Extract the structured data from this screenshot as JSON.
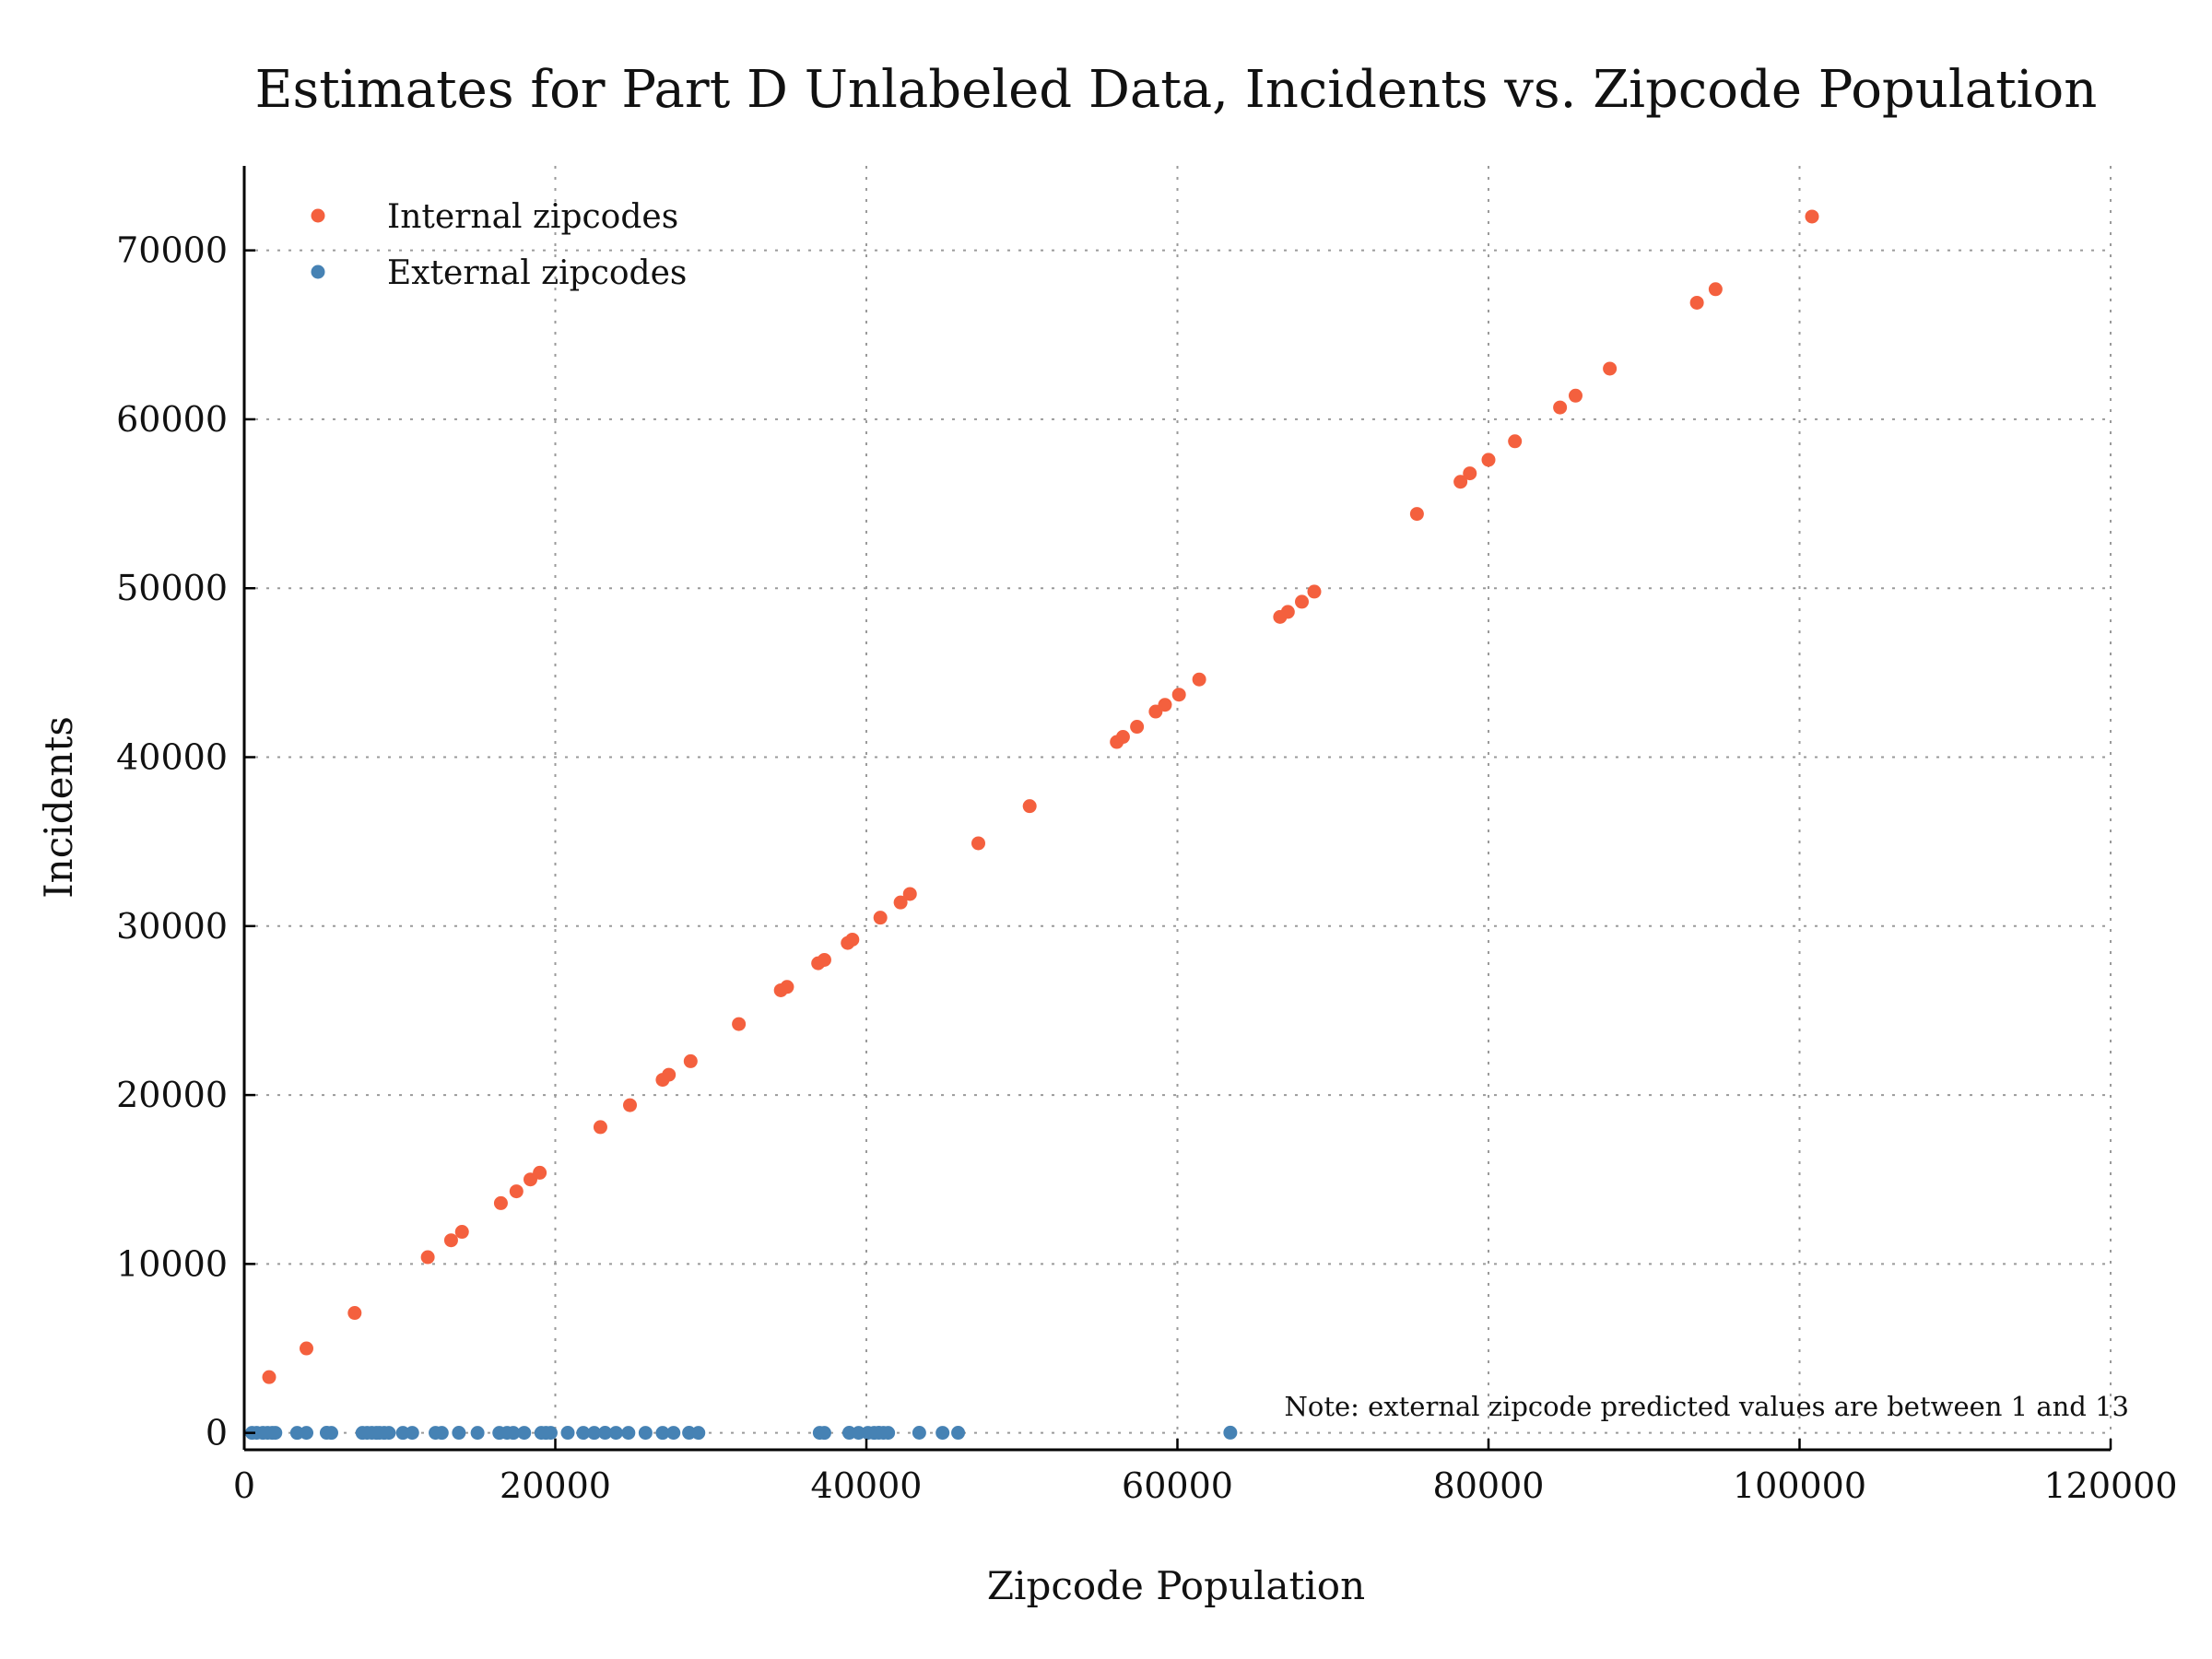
{
  "chart_data": {
    "type": "scatter",
    "title": "Estimates for Part D Unlabeled Data, Incidents vs. Zipcode Population",
    "xlabel": "Zipcode Population",
    "ylabel": "Incidents",
    "xlim": [
      0,
      120000
    ],
    "ylim": [
      -1000,
      75000
    ],
    "xticks": [
      0,
      20000,
      40000,
      60000,
      80000,
      100000,
      120000
    ],
    "xtick_labels": [
      "0",
      "20000",
      "40000",
      "60000",
      "80000",
      "100000",
      "120000"
    ],
    "yticks": [
      0,
      10000,
      20000,
      30000,
      40000,
      50000,
      60000,
      70000
    ],
    "ytick_labels": [
      "0",
      "10000",
      "20000",
      "30000",
      "40000",
      "50000",
      "60000",
      "70000"
    ],
    "grid": true,
    "legend_position": "top-left",
    "annotation": "Note: external zipcode predicted values are between 1 and 13",
    "series": [
      {
        "name": "Internal zipcodes",
        "color": "#f4603e",
        "points": [
          [
            1600,
            3300
          ],
          [
            4000,
            5000
          ],
          [
            7100,
            7100
          ],
          [
            11800,
            10400
          ],
          [
            13300,
            11400
          ],
          [
            14000,
            11900
          ],
          [
            16500,
            13600
          ],
          [
            17500,
            14300
          ],
          [
            18400,
            15000
          ],
          [
            19000,
            15400
          ],
          [
            22900,
            18100
          ],
          [
            24800,
            19400
          ],
          [
            26900,
            20900
          ],
          [
            27300,
            21200
          ],
          [
            28700,
            22000
          ],
          [
            31800,
            24200
          ],
          [
            34500,
            26200
          ],
          [
            34900,
            26400
          ],
          [
            36900,
            27800
          ],
          [
            37300,
            28000
          ],
          [
            38800,
            29000
          ],
          [
            39100,
            29200
          ],
          [
            40900,
            30500
          ],
          [
            42200,
            31400
          ],
          [
            42800,
            31900
          ],
          [
            47200,
            34900
          ],
          [
            50500,
            37100
          ],
          [
            56100,
            40900
          ],
          [
            56500,
            41200
          ],
          [
            57400,
            41800
          ],
          [
            58600,
            42700
          ],
          [
            59200,
            43100
          ],
          [
            60100,
            43700
          ],
          [
            61400,
            44600
          ],
          [
            66600,
            48300
          ],
          [
            67100,
            48600
          ],
          [
            68000,
            49200
          ],
          [
            68800,
            49800
          ],
          [
            75400,
            54400
          ],
          [
            78200,
            56300
          ],
          [
            78800,
            56800
          ],
          [
            80000,
            57600
          ],
          [
            81700,
            58700
          ],
          [
            84600,
            60700
          ],
          [
            85600,
            61400
          ],
          [
            87800,
            63000
          ],
          [
            93400,
            66900
          ],
          [
            94600,
            67700
          ],
          [
            100800,
            72000
          ]
        ]
      },
      {
        "name": "External zipcodes",
        "color": "#4682b4",
        "points": [
          [
            500,
            1
          ],
          [
            800,
            3
          ],
          [
            1200,
            2
          ],
          [
            1500,
            4
          ],
          [
            1800,
            1
          ],
          [
            2000,
            5
          ],
          [
            3400,
            2
          ],
          [
            4000,
            3
          ],
          [
            5300,
            6
          ],
          [
            5600,
            2
          ],
          [
            7600,
            1
          ],
          [
            7900,
            3
          ],
          [
            8200,
            5
          ],
          [
            8500,
            2
          ],
          [
            8700,
            4
          ],
          [
            9000,
            1
          ],
          [
            9300,
            3
          ],
          [
            10200,
            2
          ],
          [
            10800,
            5
          ],
          [
            12300,
            4
          ],
          [
            12700,
            2
          ],
          [
            13800,
            6
          ],
          [
            15000,
            3
          ],
          [
            16400,
            2
          ],
          [
            16900,
            5
          ],
          [
            17300,
            1
          ],
          [
            18000,
            4
          ],
          [
            19100,
            3
          ],
          [
            19400,
            2
          ],
          [
            19700,
            5
          ],
          [
            20800,
            7
          ],
          [
            21800,
            3
          ],
          [
            22500,
            2
          ],
          [
            23200,
            6
          ],
          [
            23900,
            4
          ],
          [
            24700,
            3
          ],
          [
            25800,
            5
          ],
          [
            26900,
            2
          ],
          [
            27600,
            4
          ],
          [
            28600,
            8
          ],
          [
            29200,
            3
          ],
          [
            37000,
            5
          ],
          [
            37300,
            2
          ],
          [
            38900,
            6
          ],
          [
            39500,
            3
          ],
          [
            40100,
            4
          ],
          [
            40500,
            2
          ],
          [
            40800,
            7
          ],
          [
            41100,
            5
          ],
          [
            41400,
            3
          ],
          [
            43400,
            9
          ],
          [
            44900,
            4
          ],
          [
            45900,
            6
          ],
          [
            63400,
            13
          ]
        ]
      }
    ]
  }
}
